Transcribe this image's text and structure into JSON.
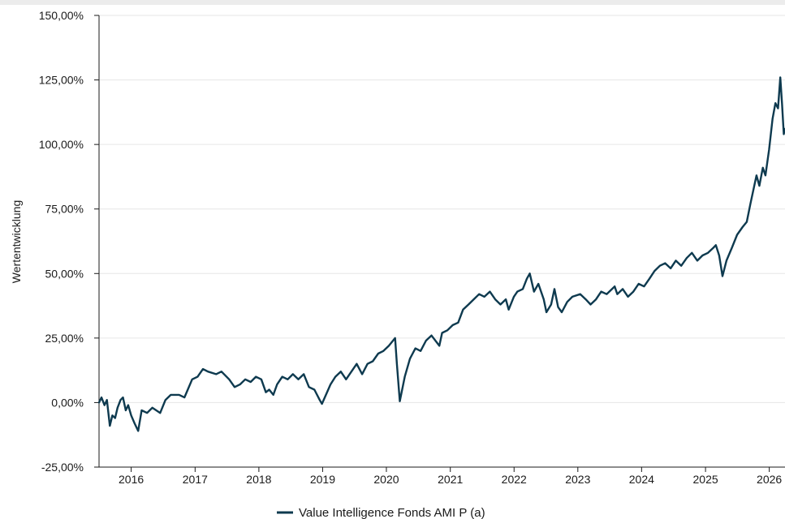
{
  "chart_data": {
    "type": "line",
    "ylabel": "Wertentwicklung",
    "xlabel": "",
    "title": "",
    "ylim": [
      -25,
      150
    ],
    "xlim": [
      "2015-07-01",
      "2026-04-01"
    ],
    "y_ticks": [
      -25,
      0,
      25,
      50,
      75,
      100,
      125,
      150
    ],
    "y_tick_labels": [
      "-25,00%",
      "0,00%",
      "25,00%",
      "50,00%",
      "75,00%",
      "100,00%",
      "125,00%",
      "150,00%"
    ],
    "x_ticks": [
      "2016-01-01",
      "2017-01-01",
      "2018-01-01",
      "2019-01-01",
      "2020-01-01",
      "2021-01-01",
      "2022-01-01",
      "2023-01-01",
      "2024-01-01",
      "2025-01-01",
      "2026-01-01"
    ],
    "x_tick_labels": [
      "2016",
      "2017",
      "2018",
      "2019",
      "2020",
      "2021",
      "2022",
      "2023",
      "2024",
      "2025",
      "2026"
    ],
    "grid": true,
    "legend": "bottom-center",
    "series": [
      {
        "name": "Value Intelligence Fonds AMI P (a)",
        "color": "#0e3a4f",
        "points": [
          [
            "2015-07-01",
            0.0
          ],
          [
            "2015-07-15",
            2.0
          ],
          [
            "2015-08-01",
            -1.0
          ],
          [
            "2015-08-15",
            1.0
          ],
          [
            "2015-09-01",
            -9.0
          ],
          [
            "2015-09-15",
            -5.0
          ],
          [
            "2015-10-01",
            -6.0
          ],
          [
            "2015-10-15",
            -2.0
          ],
          [
            "2015-11-01",
            1.0
          ],
          [
            "2015-11-15",
            2.0
          ],
          [
            "2015-12-01",
            -3.0
          ],
          [
            "2015-12-15",
            -1.0
          ],
          [
            "2016-01-01",
            -5.0
          ],
          [
            "2016-01-20",
            -8.0
          ],
          [
            "2016-02-10",
            -11.0
          ],
          [
            "2016-03-01",
            -3.0
          ],
          [
            "2016-04-01",
            -4.0
          ],
          [
            "2016-05-01",
            -2.0
          ],
          [
            "2016-06-15",
            -4.0
          ],
          [
            "2016-07-15",
            1.0
          ],
          [
            "2016-08-15",
            3.0
          ],
          [
            "2016-10-01",
            3.0
          ],
          [
            "2016-11-01",
            2.0
          ],
          [
            "2016-11-20",
            5.0
          ],
          [
            "2016-12-15",
            9.0
          ],
          [
            "2017-01-15",
            10.0
          ],
          [
            "2017-02-15",
            13.0
          ],
          [
            "2017-03-15",
            12.0
          ],
          [
            "2017-05-01",
            11.0
          ],
          [
            "2017-06-01",
            12.0
          ],
          [
            "2017-07-15",
            9.0
          ],
          [
            "2017-08-15",
            6.0
          ],
          [
            "2017-09-15",
            7.0
          ],
          [
            "2017-10-15",
            9.0
          ],
          [
            "2017-11-15",
            8.0
          ],
          [
            "2017-12-15",
            10.0
          ],
          [
            "2018-01-15",
            9.0
          ],
          [
            "2018-02-10",
            4.0
          ],
          [
            "2018-03-01",
            5.0
          ],
          [
            "2018-03-25",
            3.0
          ],
          [
            "2018-04-15",
            7.0
          ],
          [
            "2018-05-15",
            10.0
          ],
          [
            "2018-06-15",
            9.0
          ],
          [
            "2018-07-15",
            11.0
          ],
          [
            "2018-08-15",
            9.0
          ],
          [
            "2018-09-15",
            11.0
          ],
          [
            "2018-10-15",
            6.0
          ],
          [
            "2018-11-15",
            5.0
          ],
          [
            "2018-12-15",
            1.0
          ],
          [
            "2018-12-28",
            -0.5
          ],
          [
            "2019-01-20",
            3.0
          ],
          [
            "2019-02-15",
            7.0
          ],
          [
            "2019-03-15",
            10.0
          ],
          [
            "2019-04-15",
            12.0
          ],
          [
            "2019-05-15",
            9.0
          ],
          [
            "2019-06-15",
            12.0
          ],
          [
            "2019-07-15",
            15.0
          ],
          [
            "2019-08-15",
            11.0
          ],
          [
            "2019-09-15",
            15.0
          ],
          [
            "2019-10-15",
            16.0
          ],
          [
            "2019-11-15",
            19.0
          ],
          [
            "2019-12-15",
            20.0
          ],
          [
            "2020-01-15",
            22.0
          ],
          [
            "2020-02-20",
            25.0
          ],
          [
            "2020-03-01",
            15.0
          ],
          [
            "2020-03-18",
            0.5
          ],
          [
            "2020-04-15",
            10.0
          ],
          [
            "2020-05-15",
            17.0
          ],
          [
            "2020-06-15",
            21.0
          ],
          [
            "2020-07-15",
            20.0
          ],
          [
            "2020-08-15",
            24.0
          ],
          [
            "2020-09-15",
            26.0
          ],
          [
            "2020-10-30",
            22.0
          ],
          [
            "2020-11-15",
            27.0
          ],
          [
            "2020-12-15",
            28.0
          ],
          [
            "2021-01-15",
            30.0
          ],
          [
            "2021-02-15",
            31.0
          ],
          [
            "2021-03-15",
            36.0
          ],
          [
            "2021-04-15",
            38.0
          ],
          [
            "2021-05-15",
            40.0
          ],
          [
            "2021-06-15",
            42.0
          ],
          [
            "2021-07-15",
            41.0
          ],
          [
            "2021-08-15",
            43.0
          ],
          [
            "2021-09-15",
            40.0
          ],
          [
            "2021-10-15",
            38.0
          ],
          [
            "2021-11-15",
            40.0
          ],
          [
            "2021-12-01",
            36.0
          ],
          [
            "2021-12-31",
            41.0
          ],
          [
            "2022-01-20",
            43.0
          ],
          [
            "2022-02-20",
            44.0
          ],
          [
            "2022-03-15",
            48.0
          ],
          [
            "2022-04-01",
            50.0
          ],
          [
            "2022-04-25",
            43.0
          ],
          [
            "2022-05-20",
            46.0
          ],
          [
            "2022-06-20",
            40.0
          ],
          [
            "2022-07-05",
            35.0
          ],
          [
            "2022-08-01",
            38.0
          ],
          [
            "2022-08-20",
            44.0
          ],
          [
            "2022-09-10",
            37.0
          ],
          [
            "2022-10-01",
            35.0
          ],
          [
            "2022-11-01",
            39.0
          ],
          [
            "2022-12-01",
            41.0
          ],
          [
            "2023-01-15",
            42.0
          ],
          [
            "2023-02-15",
            40.0
          ],
          [
            "2023-03-15",
            38.0
          ],
          [
            "2023-04-15",
            40.0
          ],
          [
            "2023-05-15",
            43.0
          ],
          [
            "2023-06-15",
            42.0
          ],
          [
            "2023-07-31",
            45.0
          ],
          [
            "2023-08-15",
            42.0
          ],
          [
            "2023-09-15",
            44.0
          ],
          [
            "2023-10-15",
            41.0
          ],
          [
            "2023-11-15",
            43.0
          ],
          [
            "2023-12-15",
            46.0
          ],
          [
            "2024-01-15",
            45.0
          ],
          [
            "2024-02-15",
            48.0
          ],
          [
            "2024-03-15",
            51.0
          ],
          [
            "2024-04-15",
            53.0
          ],
          [
            "2024-05-15",
            54.0
          ],
          [
            "2024-06-15",
            52.0
          ],
          [
            "2024-07-15",
            55.0
          ],
          [
            "2024-08-15",
            53.0
          ],
          [
            "2024-09-15",
            56.0
          ],
          [
            "2024-10-15",
            58.0
          ],
          [
            "2024-11-15",
            55.0
          ],
          [
            "2024-12-15",
            57.0
          ],
          [
            "2025-01-15",
            58.0
          ],
          [
            "2025-02-15",
            60.0
          ],
          [
            "2025-03-01",
            61.0
          ],
          [
            "2025-03-20",
            57.0
          ],
          [
            "2025-04-08",
            49.0
          ],
          [
            "2025-05-01",
            55.0
          ],
          [
            "2025-06-01",
            60.0
          ],
          [
            "2025-07-01",
            65.0
          ],
          [
            "2025-08-01",
            68.0
          ],
          [
            "2025-08-25",
            70.0
          ],
          [
            "2025-09-15",
            77.0
          ],
          [
            "2025-10-01",
            82.0
          ],
          [
            "2025-10-20",
            88.0
          ],
          [
            "2025-11-05",
            84.0
          ],
          [
            "2025-11-25",
            91.0
          ],
          [
            "2025-12-10",
            88.0
          ],
          [
            "2025-12-31",
            98.0
          ],
          [
            "2026-01-20",
            110.0
          ],
          [
            "2026-02-05",
            116.0
          ],
          [
            "2026-02-20",
            114.0
          ],
          [
            "2026-03-05",
            126.0
          ],
          [
            "2026-03-15",
            116.0
          ],
          [
            "2026-03-25",
            104.0
          ],
          [
            "2026-03-31",
            106.0
          ]
        ]
      }
    ]
  }
}
